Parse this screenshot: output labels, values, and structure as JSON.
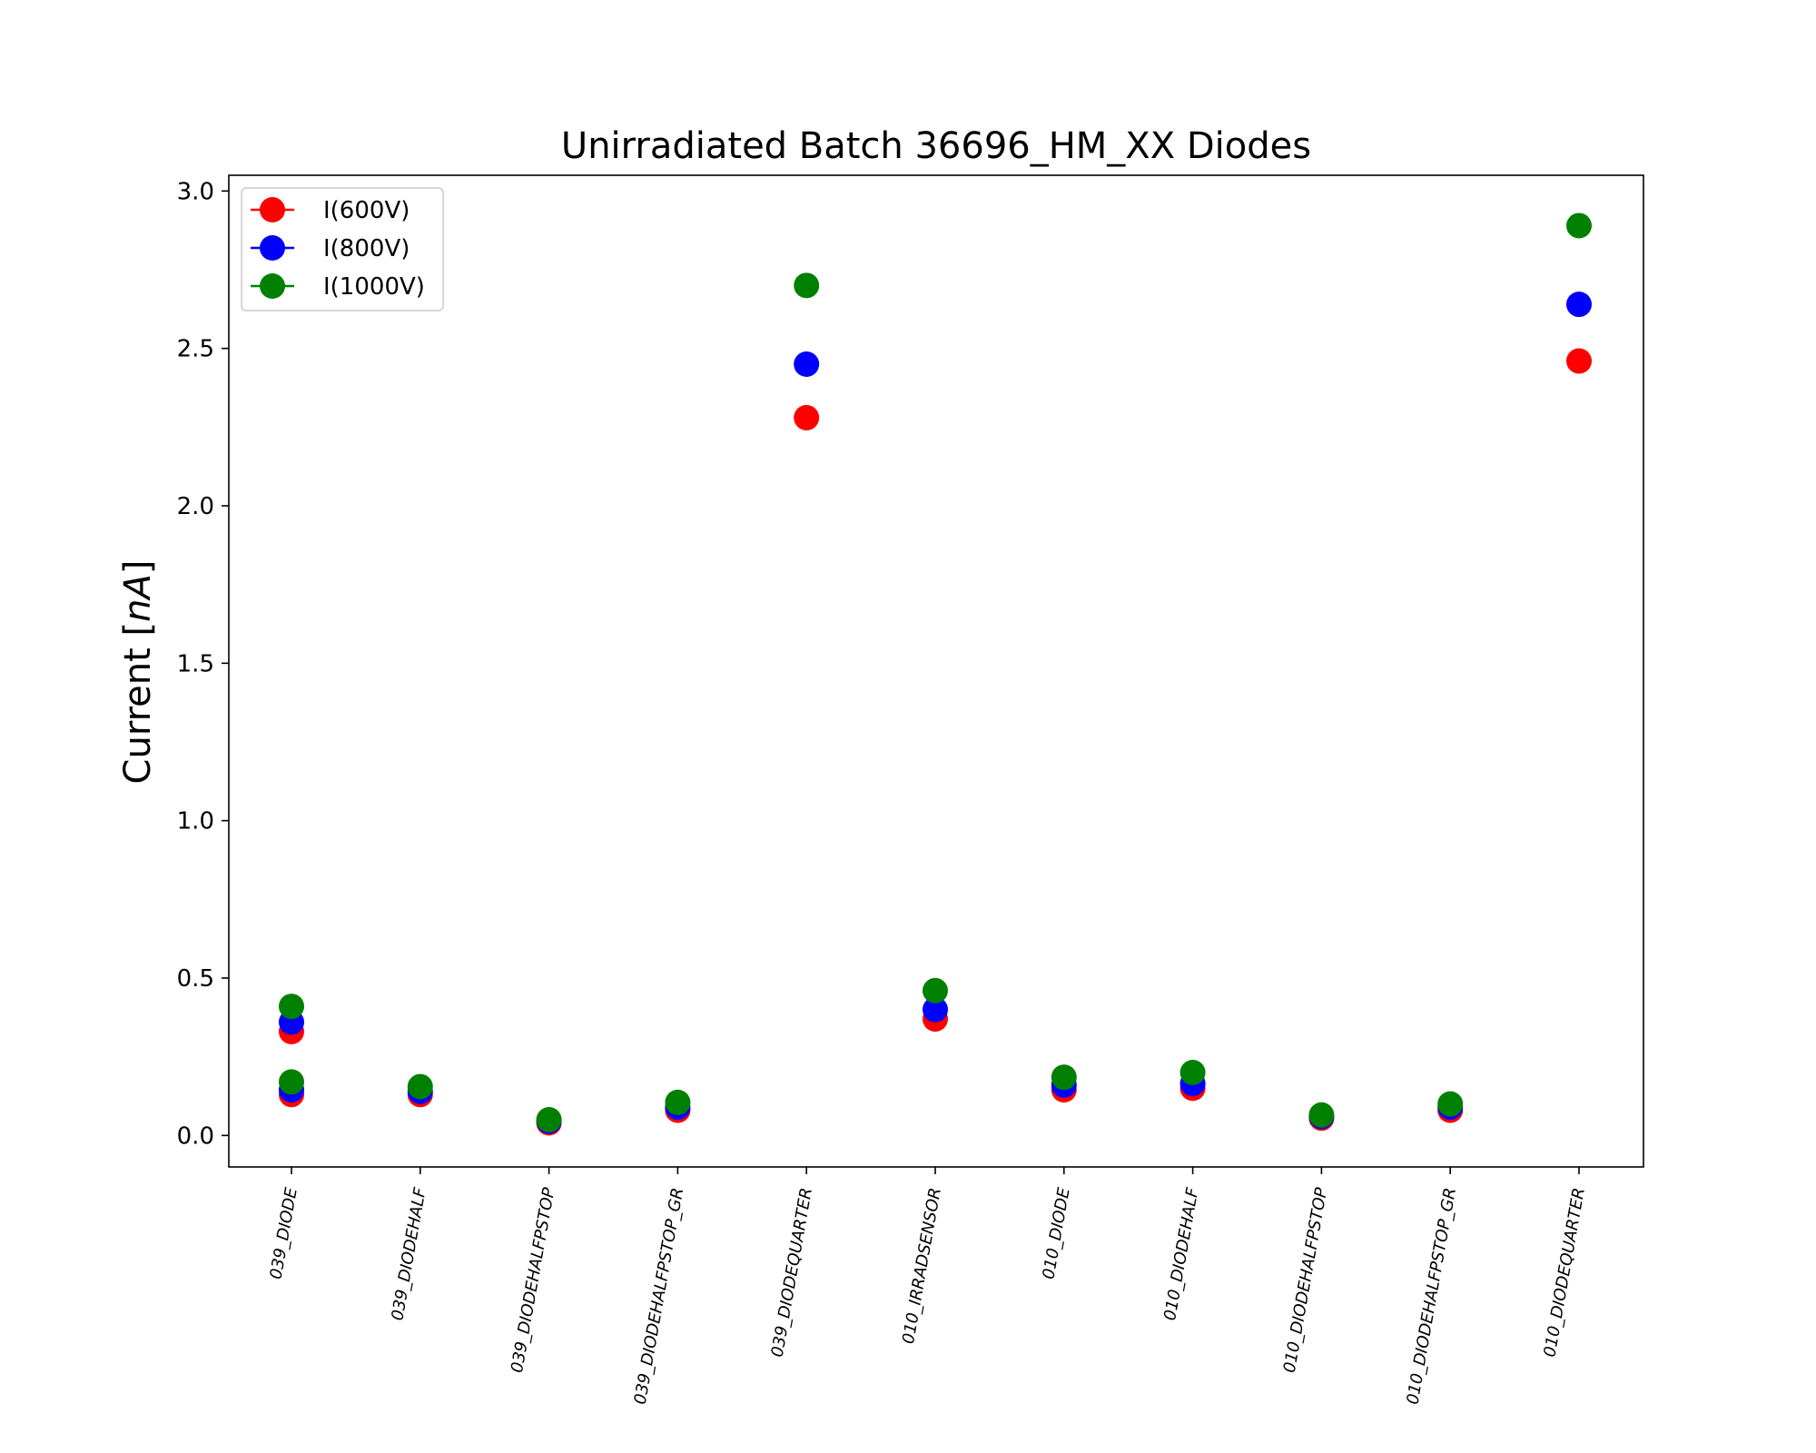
{
  "chart_data": {
    "type": "scatter",
    "title": "Unirradiated Batch 36696_HM_XX Diodes",
    "xlabel": "",
    "ylabel_text": "Current [",
    "ylabel_unit": "nA",
    "ylabel_close": "]",
    "ylim": [
      -0.1,
      3.05
    ],
    "yticks": [
      0.0,
      0.5,
      1.0,
      1.5,
      2.0,
      2.5,
      3.0
    ],
    "ytick_labels": [
      "0.0",
      "0.5",
      "1.0",
      "1.5",
      "2.0",
      "2.5",
      "3.0"
    ],
    "grid": false,
    "legend_position": "top-left",
    "categories": [
      "039_DIODE",
      "039_DIODEHALF",
      "039_DIODEHALFPSTOP",
      "039_DIODEHALFPSTOP_GR",
      "039_DIODEQUARTER",
      "010_IRRADSENSOR",
      "010_DIODE",
      "010_DIODEHALF",
      "010_DIODEHALFPSTOP",
      "010_DIODEHALFPSTOP_GR",
      "010_DIODEQUARTER"
    ],
    "series": [
      {
        "name": "I(600V)",
        "color": "#ff0000",
        "points": [
          [
            0,
            0.33
          ],
          [
            0,
            0.13
          ],
          [
            1,
            0.13
          ],
          [
            2,
            0.04
          ],
          [
            3,
            0.08
          ],
          [
            4,
            2.28
          ],
          [
            5,
            0.37
          ],
          [
            6,
            0.145
          ],
          [
            7,
            0.15
          ],
          [
            8,
            0.055
          ],
          [
            9,
            0.08
          ],
          [
            10,
            2.46
          ]
        ]
      },
      {
        "name": "I(800V)",
        "color": "#0000ff",
        "points": [
          [
            0,
            0.36
          ],
          [
            0,
            0.145
          ],
          [
            1,
            0.14
          ],
          [
            2,
            0.045
          ],
          [
            3,
            0.09
          ],
          [
            4,
            2.45
          ],
          [
            5,
            0.4
          ],
          [
            6,
            0.16
          ],
          [
            7,
            0.165
          ],
          [
            8,
            0.06
          ],
          [
            9,
            0.09
          ],
          [
            10,
            2.64
          ]
        ]
      },
      {
        "name": "I(1000V)",
        "color": "#008000",
        "points": [
          [
            0,
            0.41
          ],
          [
            0,
            0.17
          ],
          [
            1,
            0.155
          ],
          [
            2,
            0.05
          ],
          [
            3,
            0.105
          ],
          [
            4,
            2.7
          ],
          [
            5,
            0.46
          ],
          [
            6,
            0.185
          ],
          [
            7,
            0.2
          ],
          [
            8,
            0.065
          ],
          [
            9,
            0.1
          ],
          [
            10,
            2.89
          ]
        ]
      }
    ]
  }
}
